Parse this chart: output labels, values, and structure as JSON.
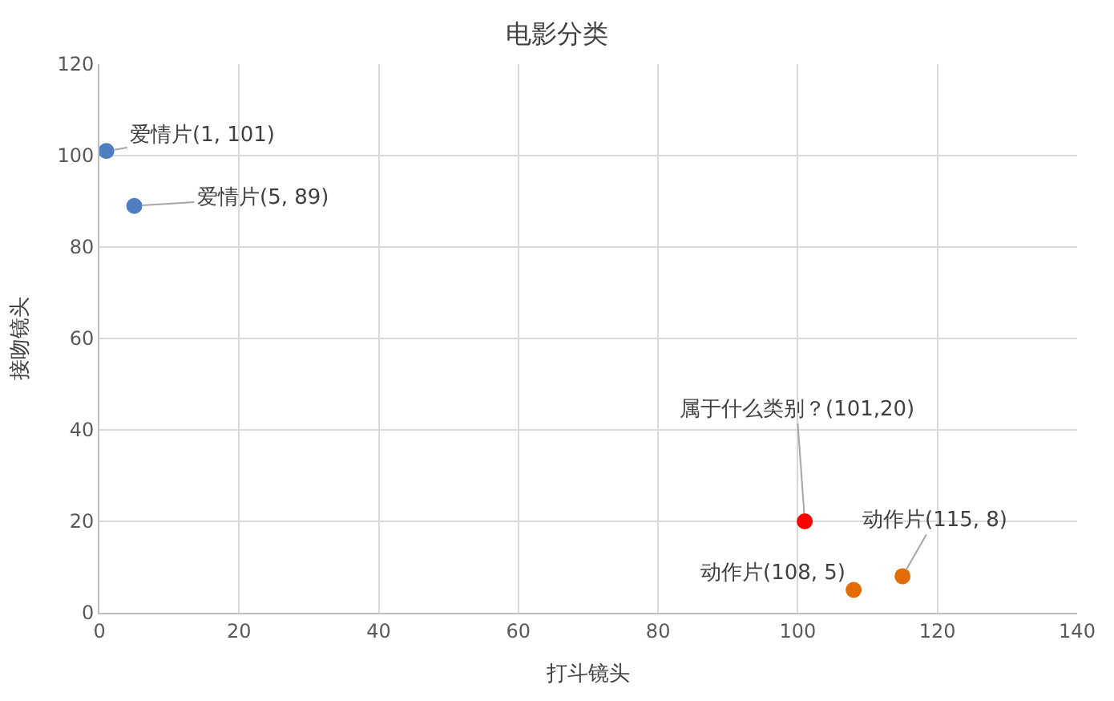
{
  "chart_data": {
    "type": "scatter",
    "title": "电影分类",
    "xlabel": "打斗镜头",
    "ylabel": "接吻镜头",
    "x": [
      1,
      5,
      101,
      108,
      115
    ],
    "values": [
      101,
      89,
      20,
      5,
      8
    ],
    "colors": [
      "#4f7fc0",
      "#4f7fc0",
      "#ff0000",
      "#e36c09",
      "#e36c09"
    ],
    "marker": "circle",
    "grid": true,
    "xlim": [
      0,
      140
    ],
    "xticks": [
      0,
      20,
      40,
      60,
      80,
      100,
      120,
      140
    ],
    "ylim": [
      0,
      120
    ],
    "yticks": [
      0,
      20,
      40,
      60,
      80,
      100,
      120
    ],
    "annotations": [
      {
        "text": "爱情片(1, 101)",
        "x": 1,
        "y": 101
      },
      {
        "text": "爱情片(5, 89)",
        "x": 5,
        "y": 89
      },
      {
        "text": "属于什么类别？(101,20)",
        "x": 101,
        "y": 20
      },
      {
        "text": "动作片(108, 5)",
        "x": 108,
        "y": 5
      },
      {
        "text": "动作片(115, 8)",
        "x": 115,
        "y": 8
      }
    ]
  }
}
